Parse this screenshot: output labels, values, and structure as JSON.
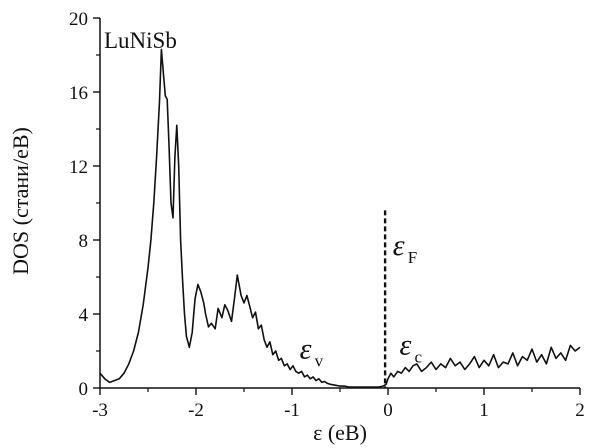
{
  "chart_data": {
    "type": "line",
    "title": "",
    "annotation_compound": "LuNiSb",
    "xlabel": "ε (eB)",
    "ylabel": "DOS (стани/eB)",
    "xlim": [
      -3,
      2
    ],
    "ylim": [
      0,
      20
    ],
    "x_ticks": [
      -3,
      -2,
      -1,
      0,
      1,
      2
    ],
    "y_ticks": [
      0,
      4,
      8,
      12,
      16,
      20
    ],
    "x_tick_labels": [
      "-3",
      "-2",
      "-1",
      "0",
      "1",
      "2"
    ],
    "y_tick_labels": [
      "0",
      "4",
      "8",
      "12",
      "16",
      "20"
    ],
    "grid": false,
    "fermi_level": {
      "x": -0.03,
      "y_top": 9.6,
      "style": "dashed"
    },
    "annotations": [
      {
        "symbol": "ε",
        "subscript": "F",
        "x": 0.05,
        "y": 7.2
      },
      {
        "symbol": "ε",
        "subscript": "v",
        "x": -0.92,
        "y": 1.6
      },
      {
        "symbol": "ε",
        "subscript": "c",
        "x": 0.12,
        "y": 1.8
      }
    ],
    "series": [
      {
        "x": [
          -3.0,
          -2.95,
          -2.9,
          -2.85,
          -2.8,
          -2.75,
          -2.7,
          -2.65,
          -2.6,
          -2.55,
          -2.5,
          -2.47,
          -2.44,
          -2.41,
          -2.38,
          -2.36,
          -2.34,
          -2.32,
          -2.3,
          -2.28,
          -2.26,
          -2.24,
          -2.22,
          -2.2,
          -2.18,
          -2.16,
          -2.14,
          -2.12,
          -2.1,
          -2.07,
          -2.04,
          -2.01,
          -1.98,
          -1.95,
          -1.92,
          -1.9,
          -1.87,
          -1.84,
          -1.8,
          -1.77,
          -1.73,
          -1.7,
          -1.67,
          -1.63,
          -1.6,
          -1.57,
          -1.53,
          -1.5,
          -1.47,
          -1.44,
          -1.41,
          -1.38,
          -1.35,
          -1.32,
          -1.29,
          -1.26,
          -1.23,
          -1.2,
          -1.17,
          -1.14,
          -1.11,
          -1.08,
          -1.05,
          -1.02,
          -0.99,
          -0.96,
          -0.93,
          -0.9,
          -0.87,
          -0.84,
          -0.81,
          -0.78,
          -0.75,
          -0.72,
          -0.69,
          -0.66,
          -0.63,
          -0.6,
          -0.55,
          -0.5,
          -0.45,
          -0.4,
          -0.35,
          -0.3,
          -0.25,
          -0.2,
          -0.15,
          -0.1,
          -0.05,
          -0.02,
          0.0,
          0.03,
          0.06,
          0.1,
          0.14,
          0.18,
          0.22,
          0.26,
          0.3,
          0.35,
          0.4,
          0.45,
          0.5,
          0.55,
          0.6,
          0.65,
          0.7,
          0.75,
          0.8,
          0.85,
          0.9,
          0.95,
          1.0,
          1.05,
          1.1,
          1.15,
          1.2,
          1.25,
          1.3,
          1.35,
          1.4,
          1.45,
          1.5,
          1.55,
          1.6,
          1.65,
          1.7,
          1.75,
          1.8,
          1.85,
          1.9,
          1.95,
          2.0
        ],
        "values": [
          0.8,
          0.5,
          0.3,
          0.4,
          0.5,
          0.8,
          1.3,
          2.0,
          3.0,
          4.5,
          6.5,
          8.0,
          10.0,
          12.5,
          15.5,
          18.3,
          17.0,
          15.8,
          15.6,
          13.0,
          10.0,
          9.2,
          12.5,
          14.2,
          12.0,
          8.0,
          5.8,
          4.0,
          2.8,
          2.2,
          3.0,
          4.8,
          5.6,
          5.2,
          4.6,
          4.0,
          3.3,
          3.5,
          3.2,
          4.3,
          3.8,
          4.5,
          4.2,
          3.6,
          4.8,
          6.1,
          5.0,
          4.6,
          5.0,
          4.4,
          3.8,
          4.1,
          3.2,
          3.4,
          2.6,
          2.2,
          2.5,
          1.8,
          2.0,
          1.5,
          1.6,
          1.2,
          1.3,
          1.0,
          1.2,
          0.9,
          0.8,
          0.9,
          0.6,
          0.7,
          0.5,
          0.6,
          0.4,
          0.5,
          0.3,
          0.35,
          0.25,
          0.2,
          0.15,
          0.1,
          0.1,
          0.05,
          0.05,
          0.05,
          0.05,
          0.05,
          0.05,
          0.05,
          0.1,
          0.2,
          0.5,
          0.8,
          0.6,
          0.9,
          0.8,
          1.1,
          0.9,
          1.2,
          1.3,
          0.9,
          1.1,
          1.4,
          1.0,
          1.3,
          1.1,
          1.6,
          1.2,
          1.4,
          1.0,
          1.3,
          1.7,
          1.1,
          1.5,
          1.2,
          1.8,
          1.1,
          1.4,
          1.3,
          1.9,
          1.2,
          1.7,
          1.5,
          2.1,
          1.4,
          1.8,
          1.3,
          2.2,
          1.6,
          1.9,
          1.5,
          2.3,
          2.0,
          2.2
        ]
      }
    ]
  }
}
